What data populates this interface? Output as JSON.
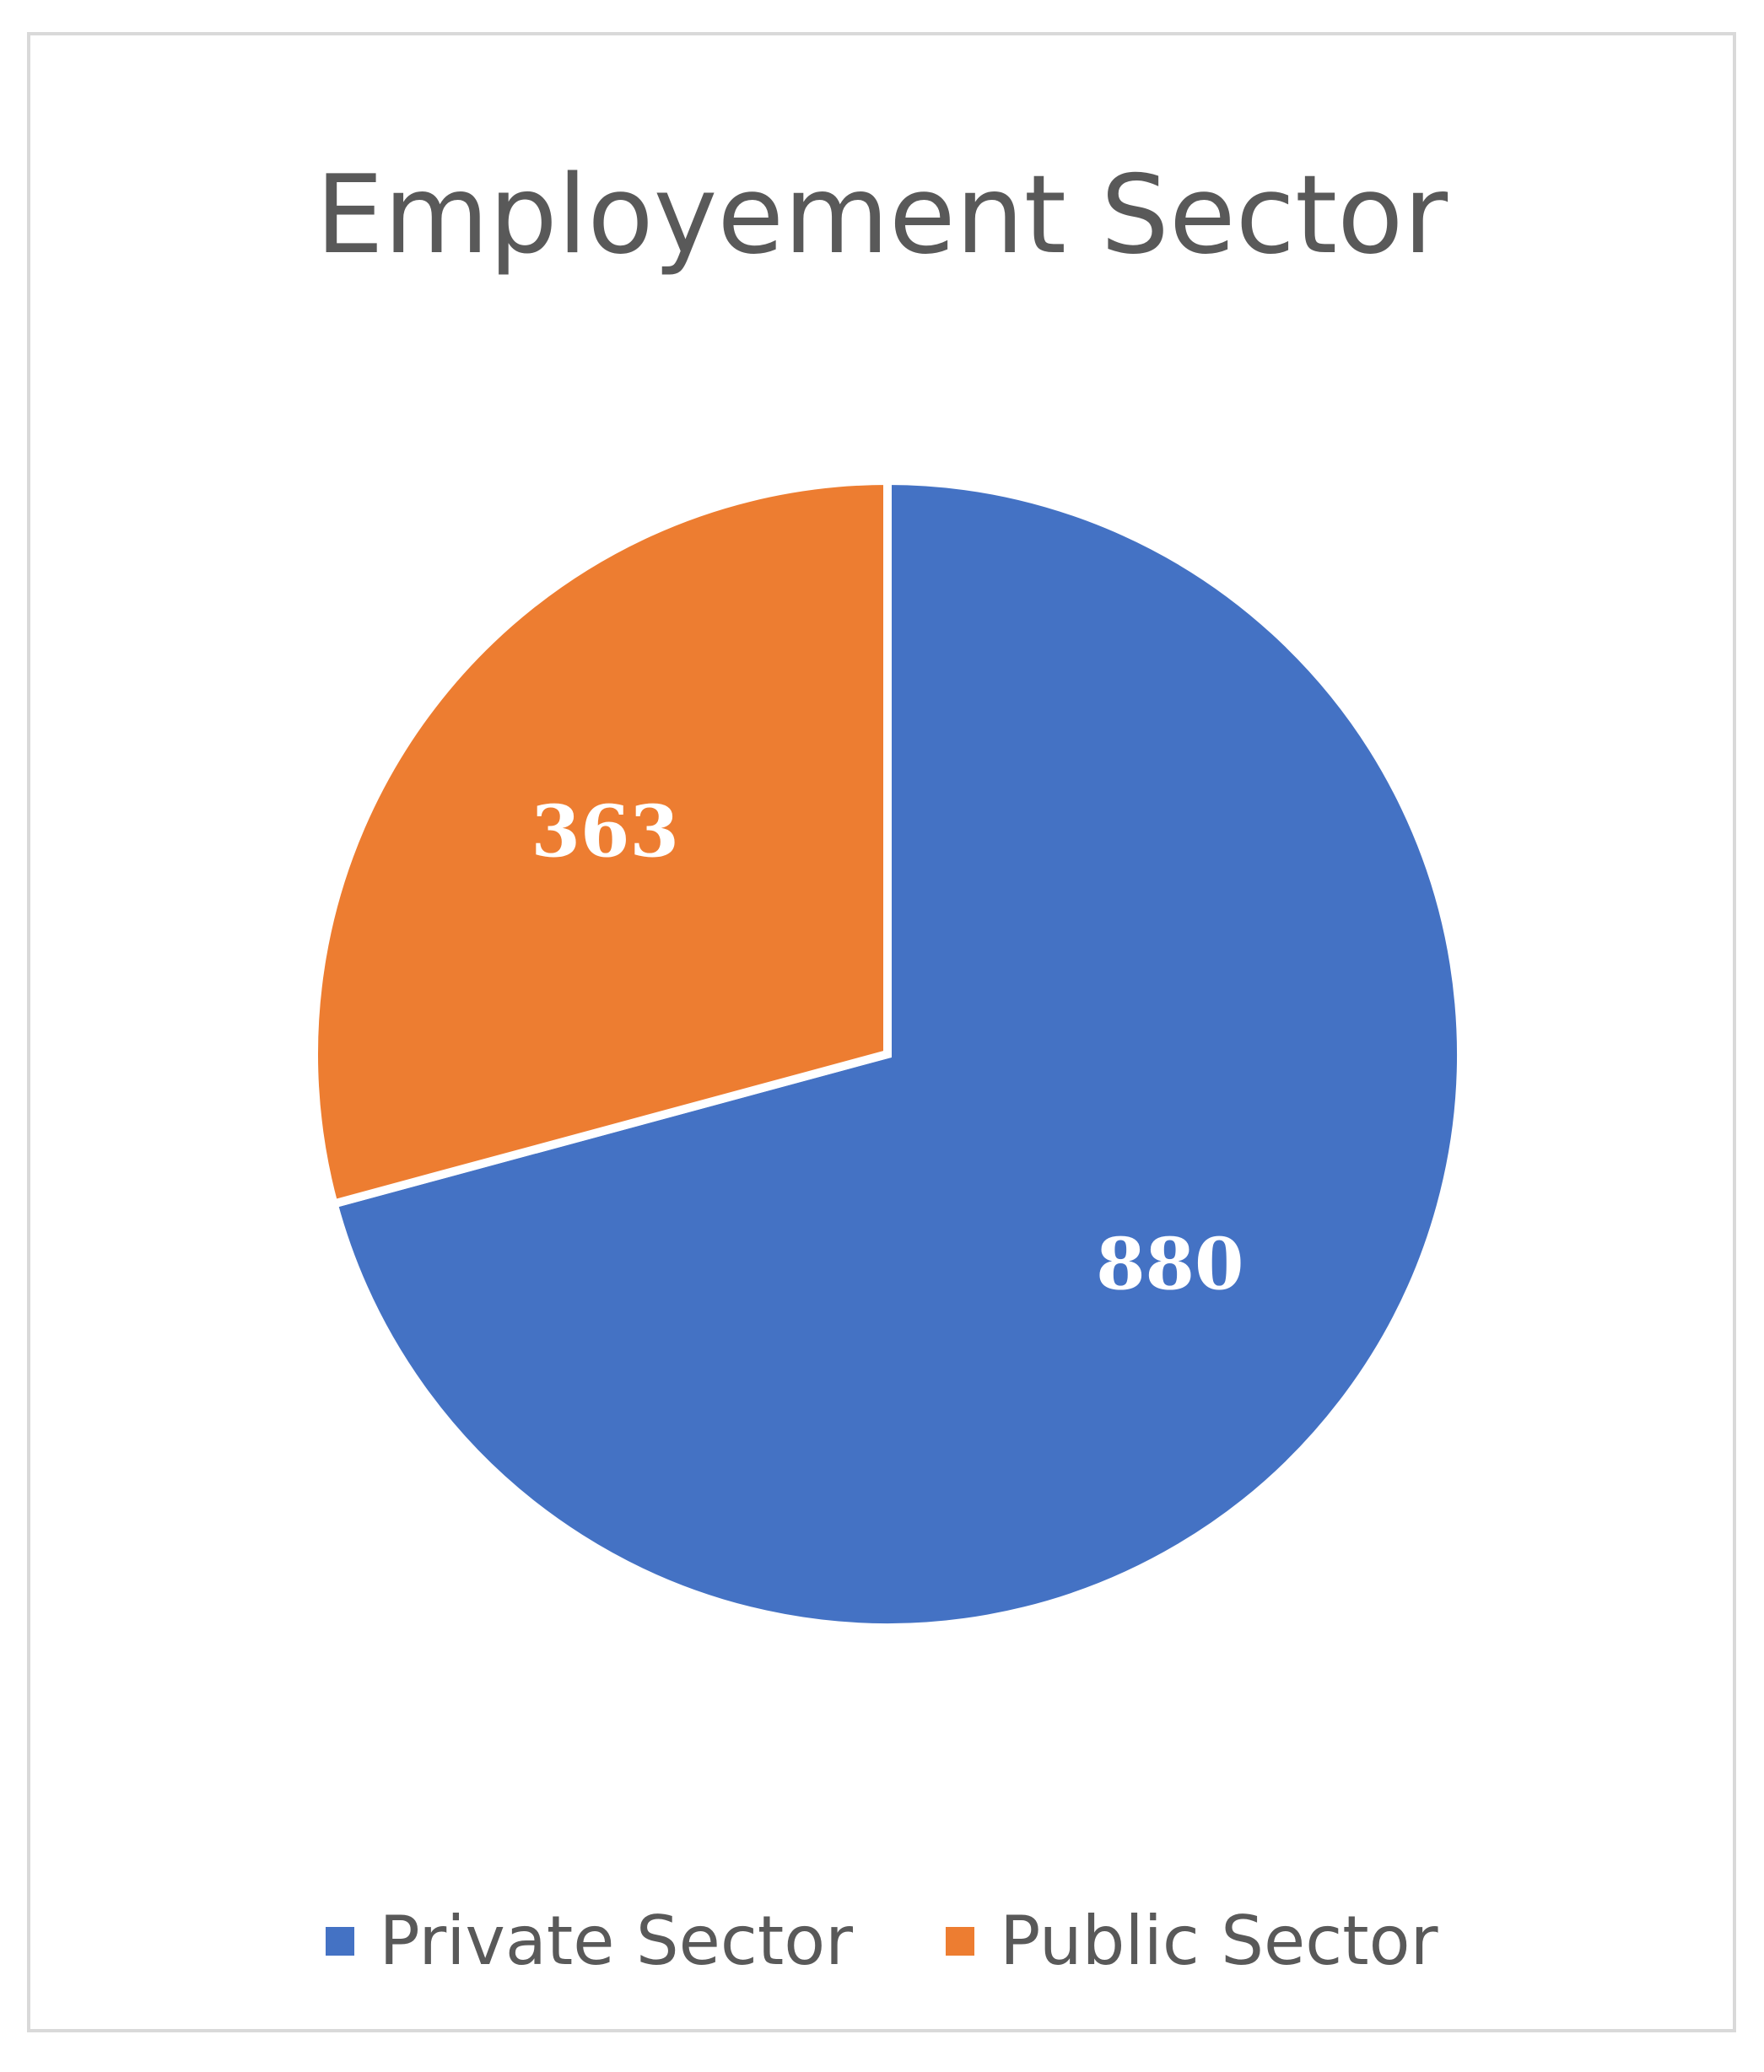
{
  "chart_data": {
    "type": "pie",
    "title": "Employement Sector",
    "categories": [
      "Private Sector",
      "Public Sector"
    ],
    "values": [
      880,
      363
    ],
    "colors": [
      "#4472C4",
      "#ED7D31"
    ],
    "start_angle_deg": 0,
    "direction": "clockwise",
    "legend_position": "bottom",
    "data_labels": [
      "880",
      "363"
    ]
  }
}
